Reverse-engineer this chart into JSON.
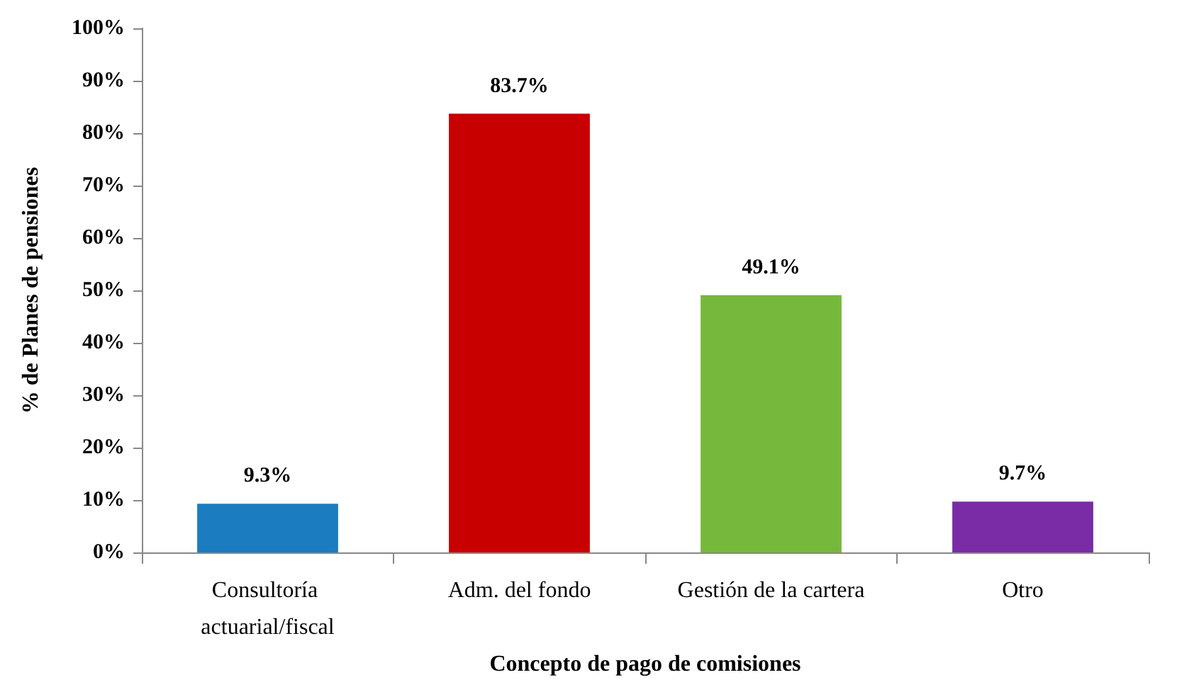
{
  "chart_data": {
    "type": "bar",
    "categories": [
      "Consultoría actuarial/fiscal",
      "Adm. del fondo",
      "Gestión de la cartera",
      "Otro"
    ],
    "values": [
      9.3,
      83.7,
      49.1,
      9.7
    ],
    "colors": [
      "#1b7cc0",
      "#c80000",
      "#76b83c",
      "#7a2ba6"
    ],
    "value_labels": [
      "9.3%",
      "83.7%",
      "49.1%",
      "9.7%"
    ],
    "xlabel": "Concepto de pago de comisiones",
    "ylabel": "% de Planes de pensiones",
    "ylim": [
      0,
      100
    ],
    "yticks": [
      {
        "value": 0,
        "label": "0%"
      },
      {
        "value": 10,
        "label": "10%"
      },
      {
        "value": 20,
        "label": "20%"
      },
      {
        "value": 30,
        "label": "30%"
      },
      {
        "value": 40,
        "label": "40%"
      },
      {
        "value": 50,
        "label": "50%"
      },
      {
        "value": 60,
        "label": "60%"
      },
      {
        "value": 70,
        "label": "70%"
      },
      {
        "value": 80,
        "label": "80%"
      },
      {
        "value": 90,
        "label": "90%"
      },
      {
        "value": 100,
        "label": "100%"
      }
    ],
    "grid": false
  }
}
